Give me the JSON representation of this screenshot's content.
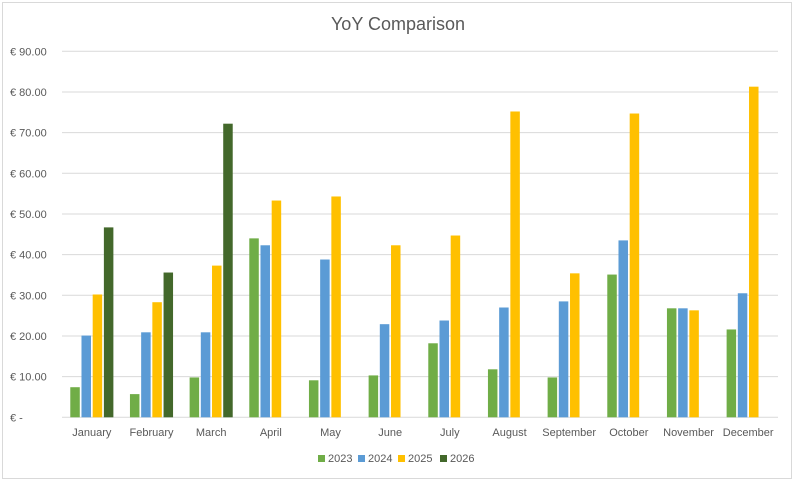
{
  "chart_data": {
    "type": "bar",
    "title": "YoY Comparison",
    "xlabel": "",
    "ylabel": "",
    "ylim": [
      0,
      90
    ],
    "yticks": [
      "€ -",
      "€ 10.00",
      "€ 20.00",
      "€ 30.00",
      "€ 40.00",
      "€ 50.00",
      "€ 60.00",
      "€ 70.00",
      "€ 80.00",
      "€ 90.00"
    ],
    "grid": true,
    "legend_position": "bottom",
    "categories": [
      "January",
      "February",
      "March",
      "April",
      "May",
      "June",
      "July",
      "August",
      "September",
      "October",
      "November",
      "December"
    ],
    "series": [
      {
        "name": "2023",
        "color": "#70ad47",
        "values": [
          7.4,
          5.7,
          9.8,
          44.0,
          9.1,
          10.3,
          18.2,
          11.8,
          9.8,
          35.1,
          26.8,
          21.6
        ]
      },
      {
        "name": "2024",
        "color": "#5b9bd5",
        "values": [
          20.1,
          20.9,
          20.9,
          42.3,
          38.8,
          22.9,
          23.8,
          27.0,
          28.5,
          43.5,
          26.8,
          30.5
        ]
      },
      {
        "name": "2025",
        "color": "#ffc000",
        "values": [
          30.2,
          28.3,
          37.3,
          53.3,
          54.3,
          42.3,
          44.7,
          75.2,
          35.4,
          74.7,
          26.3,
          81.3
        ]
      },
      {
        "name": "2026",
        "color": "#43682b",
        "values": [
          46.7,
          35.6,
          72.2,
          null,
          null,
          null,
          null,
          null,
          null,
          null,
          null,
          null
        ]
      }
    ]
  }
}
